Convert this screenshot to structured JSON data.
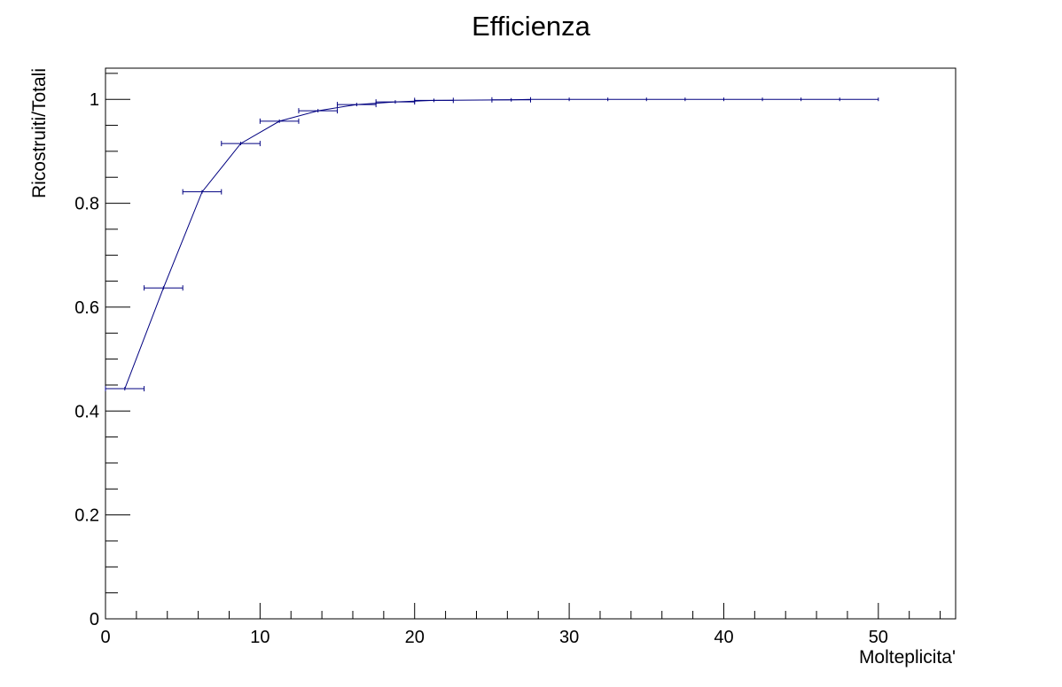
{
  "chart_data": {
    "type": "line",
    "title": "Efficienza",
    "xlabel": "Molteplicita'",
    "ylabel": "Ricostruiti/Totali",
    "xlim": [
      0,
      55
    ],
    "ylim": [
      0,
      1.06
    ],
    "x_ticks": [
      0,
      10,
      20,
      30,
      40,
      50
    ],
    "y_ticks": [
      0,
      0.2,
      0.4,
      0.6,
      0.8,
      1
    ],
    "x_tick_labels": [
      "0",
      "10",
      "20",
      "30",
      "40",
      "50"
    ],
    "y_tick_labels": [
      "0",
      "0.2",
      "0.4",
      "0.6",
      "0.8",
      "1"
    ],
    "grid": false,
    "line_color": "#000080",
    "series": [
      {
        "x": [
          1.25,
          3.75,
          6.25,
          8.75,
          11.25,
          13.75,
          16.25,
          18.75,
          21.25,
          26.25,
          27.5,
          30,
          32.5,
          35,
          37.5,
          40,
          42.5,
          45,
          47.5,
          50
        ],
        "y": [
          0.443,
          0.637,
          0.822,
          0.915,
          0.958,
          0.978,
          0.99,
          0.995,
          0.998,
          0.999,
          1.0,
          1.0,
          1.0,
          1.0,
          1.0,
          1.0,
          1.0,
          1.0,
          1.0,
          1.0
        ],
        "x_err": [
          1.25,
          1.25,
          1.25,
          1.25,
          1.25,
          1.25,
          1.25,
          1.25,
          1.25,
          1.25,
          0,
          0,
          0,
          0,
          0,
          0,
          0,
          0,
          0,
          0
        ]
      }
    ]
  }
}
